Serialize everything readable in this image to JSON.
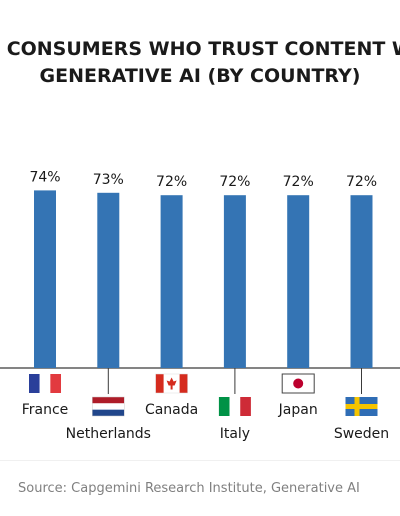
{
  "chart_data": {
    "type": "bar",
    "title_lines": [
      "F CONSUMERS WHO TRUST CONTENT W",
      "GENERATIVE AI (BY COUNTRY)"
    ],
    "categories": [
      "France",
      "Netherlands",
      "Canada",
      "Italy",
      "Japan",
      "Sweden"
    ],
    "categories_visible": [
      "France",
      "Netherlands",
      "Canada",
      "Italy",
      "Japan",
      "Sweden"
    ],
    "values": [
      74,
      73,
      72,
      72,
      72,
      72
    ],
    "value_labels": [
      "74%",
      "73%",
      "72%",
      "72%",
      "72%",
      "72%"
    ],
    "ylim": [
      0,
      100
    ],
    "grid": false,
    "colors": {
      "bar": "#3474b4",
      "axis": "#3a3a3a"
    }
  },
  "footer": {
    "source": "Source: Capgemini Research Institute, Generative AI"
  }
}
